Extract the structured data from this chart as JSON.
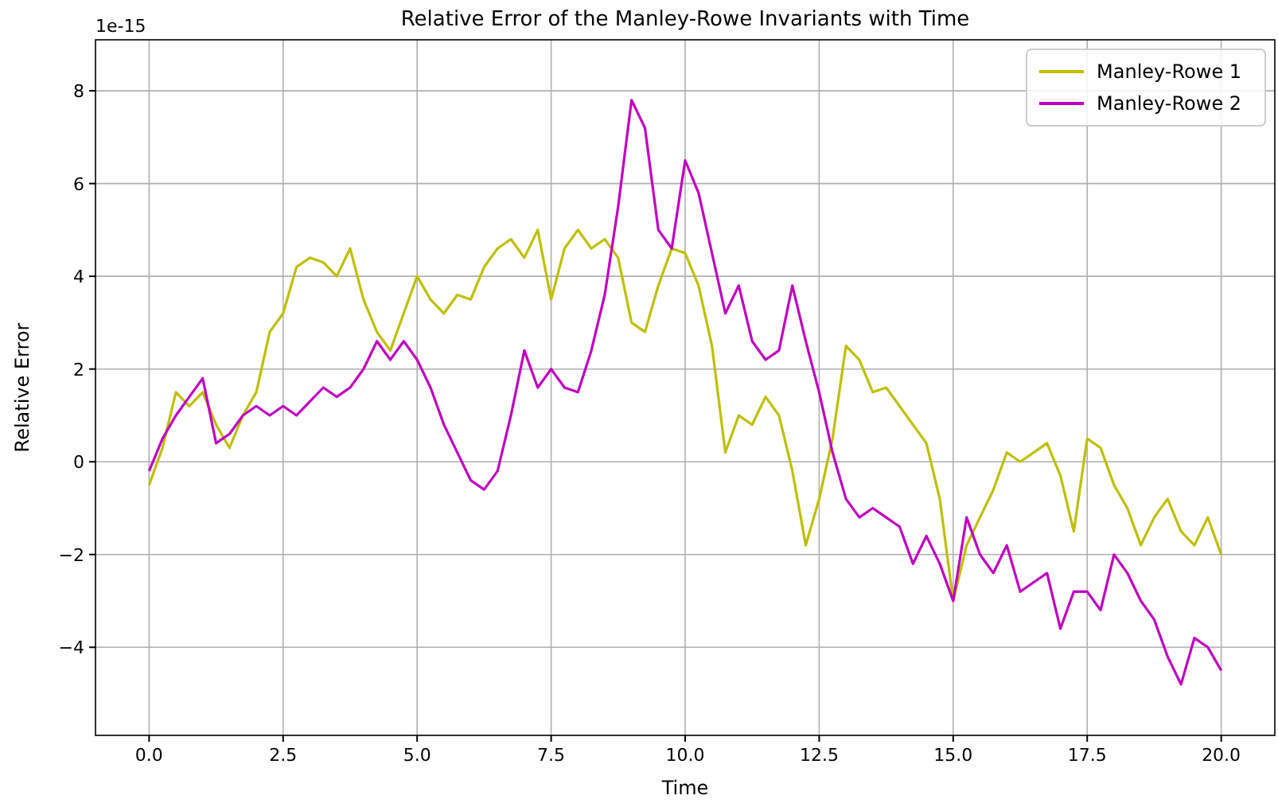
{
  "chart_data": {
    "type": "line",
    "title": "Relative Error of the Manley-Rowe Invariants with Time",
    "xlabel": "Time",
    "ylabel": "Relative Error",
    "annotations": [
      "1e-15"
    ],
    "x": [
      0,
      0.25,
      0.5,
      0.75,
      1,
      1.25,
      1.5,
      1.75,
      2,
      2.25,
      2.5,
      2.75,
      3,
      3.25,
      3.5,
      3.75,
      4,
      4.25,
      4.5,
      4.75,
      5,
      5.25,
      5.5,
      5.75,
      6,
      6.25,
      6.5,
      6.75,
      7,
      7.25,
      7.5,
      7.75,
      8,
      8.25,
      8.5,
      8.75,
      9,
      9.25,
      9.5,
      9.75,
      10,
      10.25,
      10.5,
      10.75,
      11,
      11.25,
      11.5,
      11.75,
      12,
      12.25,
      12.5,
      12.75,
      13,
      13.25,
      13.5,
      13.75,
      14,
      14.25,
      14.5,
      14.75,
      15,
      15.25,
      15.5,
      15.75,
      16,
      16.25,
      16.5,
      16.75,
      17,
      17.25,
      17.5,
      17.75,
      18,
      18.25,
      18.5,
      18.75,
      19,
      19.25,
      19.5,
      19.75,
      20
    ],
    "series": [
      {
        "name": "Manley-Rowe 1",
        "color": "#bfbf00",
        "values": [
          -0.5,
          0.3,
          1.5,
          1.2,
          1.5,
          0.8,
          0.3,
          1.0,
          1.5,
          2.8,
          3.2,
          4.2,
          4.4,
          4.3,
          4.0,
          4.6,
          3.5,
          2.8,
          2.4,
          3.2,
          4.0,
          3.5,
          3.2,
          3.6,
          3.5,
          4.2,
          4.6,
          4.8,
          4.4,
          5.0,
          3.5,
          4.6,
          5.0,
          4.6,
          4.8,
          4.4,
          3.0,
          2.8,
          3.8,
          4.6,
          4.5,
          3.8,
          2.5,
          0.2,
          1.0,
          0.8,
          1.4,
          1.0,
          -0.2,
          -1.8,
          -0.8,
          0.5,
          2.5,
          2.2,
          1.5,
          1.6,
          1.2,
          0.8,
          0.4,
          -0.8,
          -3.0,
          -1.8,
          -1.2,
          -0.6,
          0.2,
          0.0,
          0.2,
          0.4,
          -0.3,
          -1.5,
          0.5,
          0.3,
          -0.5,
          -1.0,
          -1.8,
          -1.2,
          -0.8,
          -1.5,
          -1.8,
          -1.2,
          -2.0
        ]
      },
      {
        "name": "Manley-Rowe 2",
        "color": "#bf00bf",
        "values": [
          -0.2,
          0.5,
          1.0,
          1.4,
          1.8,
          0.4,
          0.6,
          1.0,
          1.2,
          1.0,
          1.2,
          1.0,
          1.3,
          1.6,
          1.4,
          1.6,
          2.0,
          2.6,
          2.2,
          2.6,
          2.2,
          1.6,
          0.8,
          0.2,
          -0.4,
          -0.6,
          -0.2,
          1.0,
          2.4,
          1.6,
          2.0,
          1.6,
          1.5,
          2.4,
          3.6,
          5.5,
          7.8,
          7.2,
          5.0,
          4.6,
          6.5,
          5.8,
          4.5,
          3.2,
          3.8,
          2.6,
          2.2,
          2.4,
          3.8,
          2.6,
          1.5,
          0.2,
          -0.8,
          -1.2,
          -1.0,
          -1.2,
          -1.4,
          -2.2,
          -1.6,
          -2.2,
          -3.0,
          -1.2,
          -2.0,
          -2.4,
          -1.8,
          -2.8,
          -2.6,
          -2.4,
          -3.6,
          -2.8,
          -2.8,
          -3.2,
          -2.0,
          -2.4,
          -3.0,
          -3.4,
          -4.2,
          -4.8,
          -3.8,
          -4.0,
          -4.5
        ]
      }
    ],
    "xlim": [
      -1,
      21
    ],
    "xticks": [
      {
        "value": 0,
        "label": "0.0"
      },
      {
        "value": 2.5,
        "label": "2.5"
      },
      {
        "value": 5,
        "label": "5.0"
      },
      {
        "value": 7.5,
        "label": "7.5"
      },
      {
        "value": 10,
        "label": "10.0"
      },
      {
        "value": 12.5,
        "label": "12.5"
      },
      {
        "value": 15,
        "label": "15.0"
      },
      {
        "value": 17.5,
        "label": "17.5"
      },
      {
        "value": 20,
        "label": "20.0"
      }
    ],
    "ylim": [
      -5.9,
      9.1
    ],
    "yticks": [
      {
        "value": -4,
        "label": "−4"
      },
      {
        "value": -2,
        "label": "−2"
      },
      0,
      2,
      4,
      6,
      8
    ],
    "grid": true,
    "legend": "top right",
    "marker": "none",
    "line_style": "solid"
  }
}
